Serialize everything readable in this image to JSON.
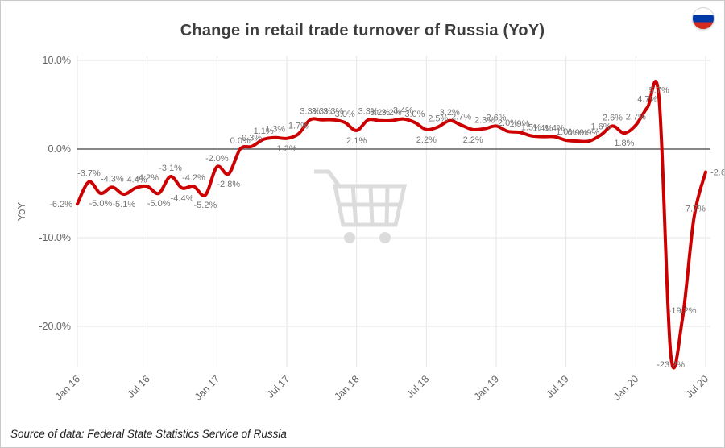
{
  "page": {
    "title": "Change in retail trade turnover of Russia (YoY)",
    "source": "Source of data: Federal State Statistics Service of Russia",
    "flag_icon": "russia-flag",
    "watermark_icon": "shopping-cart"
  },
  "chart_data": {
    "type": "line",
    "title": "Change in retail trade turnover of Russia (YoY)",
    "xlabel": "",
    "ylabel": "YoY",
    "legend_position": "none",
    "grid": true,
    "point_labels": true,
    "line_color": "#cc0001",
    "label_color": "#757575",
    "grid_color": "#e6e6e6",
    "zero_line_color": "#5e5e5e",
    "ylim": [
      -26,
      11
    ],
    "y_ticks": [
      {
        "label": "10.0%",
        "value": 10
      },
      {
        "label": "0.0%",
        "value": 0
      },
      {
        "label": "-10.0%",
        "value": -10
      },
      {
        "label": "-20.0%",
        "value": -20
      }
    ],
    "x_ticks": [
      "Jan 16",
      "Jul 16",
      "Jan 17",
      "Jul 17",
      "Jan 18",
      "Jul 18",
      "Jan 19",
      "Jul 19",
      "Jan 20",
      "Jul 20"
    ],
    "x_tick_indices": [
      0,
      6,
      12,
      18,
      24,
      30,
      36,
      42,
      48,
      54
    ],
    "x": [
      "Jan 16",
      "Feb 16",
      "Mar 16",
      "Apr 16",
      "May 16",
      "Jun 16",
      "Jul 16",
      "Aug 16",
      "Sep 16",
      "Oct 16",
      "Nov 16",
      "Dec 16",
      "Jan 17",
      "Feb 17",
      "Mar 17",
      "Apr 17",
      "May 17",
      "Jun 17",
      "Jul 17",
      "Aug 17",
      "Sep 17",
      "Oct 17",
      "Nov 17",
      "Dec 17",
      "Jan 18",
      "Feb 18",
      "Mar 18",
      "Apr 18",
      "May 18",
      "Jun 18",
      "Jul 18",
      "Aug 18",
      "Sep 18",
      "Oct 18",
      "Nov 18",
      "Dec 18",
      "Jan 19",
      "Feb 19",
      "Mar 19",
      "Apr 19",
      "May 19",
      "Jun 19",
      "Jul 19",
      "Aug 19",
      "Sep 19",
      "Oct 19",
      "Nov 19",
      "Dec 19",
      "Jan 20",
      "Feb 20",
      "Mar 20",
      "Apr 20",
      "May 20",
      "Jun 20",
      "Jul 20"
    ],
    "values": [
      -6.2,
      -3.7,
      -5.0,
      -4.3,
      -5.1,
      -4.4,
      -4.2,
      -5.0,
      -3.1,
      -4.4,
      -4.2,
      -5.2,
      -2.0,
      -2.8,
      0.0,
      0.3,
      1.1,
      1.3,
      1.2,
      1.7,
      3.3,
      3.3,
      3.3,
      3.0,
      2.1,
      3.3,
      3.2,
      3.2,
      3.4,
      3.0,
      2.2,
      2.5,
      3.2,
      2.7,
      2.2,
      2.3,
      2.6,
      2.0,
      1.9,
      1.5,
      1.4,
      1.4,
      1.0,
      0.9,
      0.9,
      1.6,
      2.6,
      1.8,
      2.7,
      4.7,
      5.7,
      -23.2,
      -19.2,
      -7.7,
      -2.6
    ]
  }
}
